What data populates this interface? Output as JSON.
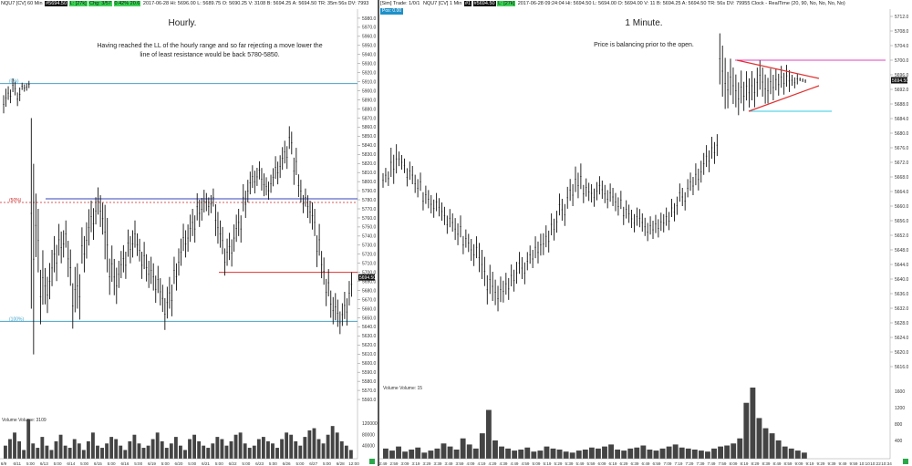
{
  "left": {
    "header": {
      "symbol": "NQU7 [CV]  60 Min",
      "cell1": "#5694.50",
      "cell2": "L: [27k]",
      "cell3": "Chg: 3/57",
      "cell4": "0.42% 20.6",
      "rest": "2017-06-28  Hi: 5696.00  L: 5689.75  O: 5690.25  V: 3108  B: 5694.25  A: 5694.50  TR: 35m 56s  DV: 7993"
    },
    "title": "Hourly.",
    "comment": "Having reached the LL of the hourly range and so far rejecting a move lower the line of least resistance would be back 5780-5850.",
    "volume_label": "Volume  Volume: 3109",
    "colors": {
      "blue_line": "#3344bb",
      "teal_line": "#4aa3c8",
      "red_line": "#e03030",
      "dotted_red": "#cc2222",
      "volume": "#444444"
    }
  },
  "right": {
    "header": {
      "symbol": "[Sim]  Trade: 1/0/1",
      "cell1": "NQU7 [CV]  1 Min",
      "cell2": "#1",
      "cell3": "#5694.50",
      "cell4": "L: [27k]",
      "rest": "2017-06-28 09:24:04  Hi: 5694.50  L: 5694.00  O: 5694.00  V: 11  B: 5694.25  A: 5694.50  TR: 56s  DV: 79955  Clock - RealTime  (20, 90, No, No, No, No)"
    },
    "sub_header": "Pos: 0.00",
    "title": "1 Minute.",
    "comment": "Price is balancing prior to the open.",
    "volume_label": "Volume  Volume: 15",
    "colors": {
      "magenta_line": "#e040c0",
      "cyan_line": "#30c8e0",
      "red_line": "#e03030",
      "volume": "#444444"
    }
  },
  "chart_data": [
    {
      "type": "ohlc",
      "timeframe": "60 Min",
      "ylim": [
        5550,
        5990
      ],
      "price_ticks": [
        5980,
        5970,
        5960,
        5950,
        5940,
        5930,
        5920,
        5910,
        5900,
        5890,
        5880,
        5870,
        5860,
        5850,
        5840,
        5830,
        5820,
        5810,
        5800,
        5790,
        5780,
        5770,
        5760,
        5750,
        5740,
        5730,
        5720,
        5710,
        5700,
        5690,
        5680,
        5670,
        5660,
        5650,
        5640,
        5630,
        5620,
        5610,
        5600,
        5590,
        5580,
        5570,
        5560
      ],
      "last_price": "5694.50",
      "x_tick_labels": [
        "6/9",
        "6/11",
        "5:00",
        "6/13",
        "5:00",
        "6/14",
        "5:00",
        "6/15",
        "5:00",
        "6/16",
        "5:00",
        "6/19",
        "5:00",
        "6/20",
        "5:00",
        "6/21",
        "5:00",
        "6/22",
        "5:00",
        "6/23",
        "5:00",
        "6/26",
        "5:00",
        "6/27",
        "5:00",
        "6/28",
        "12:00"
      ],
      "volume_ticks": [
        "120000",
        "80000",
        "40000"
      ],
      "price_path": [
        [
          5880,
          5900
        ],
        [
          5890,
          5905
        ],
        [
          5895,
          5910
        ],
        [
          5885,
          5900
        ],
        [
          5900,
          5908
        ],
        [
          5902,
          5910
        ],
        [
          5660,
          5870
        ],
        [
          5700,
          5770
        ],
        [
          5650,
          5710
        ],
        [
          5660,
          5700
        ],
        [
          5680,
          5720
        ],
        [
          5700,
          5740
        ],
        [
          5710,
          5745
        ],
        [
          5720,
          5750
        ],
        [
          5690,
          5730
        ],
        [
          5650,
          5700
        ],
        [
          5660,
          5710
        ],
        [
          5700,
          5740
        ],
        [
          5720,
          5760
        ],
        [
          5740,
          5775
        ],
        [
          5760,
          5790
        ],
        [
          5750,
          5785
        ],
        [
          5700,
          5760
        ],
        [
          5680,
          5720
        ],
        [
          5670,
          5710
        ],
        [
          5690,
          5720
        ],
        [
          5700,
          5730
        ],
        [
          5710,
          5740
        ],
        [
          5720,
          5750
        ],
        [
          5715,
          5740
        ],
        [
          5700,
          5730
        ],
        [
          5690,
          5720
        ],
        [
          5680,
          5710
        ],
        [
          5670,
          5700
        ],
        [
          5660,
          5690
        ],
        [
          5645,
          5680
        ],
        [
          5660,
          5695
        ],
        [
          5680,
          5710
        ],
        [
          5700,
          5730
        ],
        [
          5720,
          5750
        ],
        [
          5730,
          5760
        ],
        [
          5740,
          5770
        ],
        [
          5750,
          5780
        ],
        [
          5760,
          5785
        ],
        [
          5765,
          5785
        ],
        [
          5770,
          5790
        ],
        [
          5740,
          5775
        ],
        [
          5720,
          5750
        ],
        [
          5700,
          5730
        ],
        [
          5710,
          5740
        ],
        [
          5730,
          5760
        ],
        [
          5740,
          5770
        ],
        [
          5760,
          5790
        ],
        [
          5780,
          5805
        ],
        [
          5790,
          5815
        ],
        [
          5800,
          5820
        ],
        [
          5790,
          5815
        ],
        [
          5780,
          5800
        ],
        [
          5790,
          5810
        ],
        [
          5800,
          5825
        ],
        [
          5810,
          5835
        ],
        [
          5820,
          5845
        ],
        [
          5830,
          5855
        ],
        [
          5800,
          5830
        ],
        [
          5780,
          5805
        ],
        [
          5770,
          5790
        ],
        [
          5760,
          5785
        ],
        [
          5740,
          5770
        ],
        [
          5710,
          5745
        ],
        [
          5690,
          5720
        ],
        [
          5670,
          5700
        ],
        [
          5650,
          5680
        ],
        [
          5640,
          5670
        ],
        [
          5635,
          5660
        ],
        [
          5645,
          5675
        ],
        [
          5670,
          5697
        ]
      ],
      "volume_bars": [
        30,
        45,
        60,
        40,
        20,
        90,
        35,
        25,
        50,
        30,
        20,
        40,
        55,
        30,
        25,
        45,
        35,
        20,
        40,
        60,
        30,
        25,
        35,
        50,
        45,
        30,
        20,
        40,
        55,
        35,
        25,
        30,
        45,
        60,
        40,
        25,
        35,
        50,
        30,
        20,
        45,
        55,
        40,
        30,
        25,
        35,
        50,
        45,
        30,
        40,
        55,
        60,
        35,
        25,
        30,
        45,
        50,
        40,
        35,
        25,
        45,
        60,
        55,
        40,
        30,
        50,
        65,
        70,
        45,
        35,
        55,
        75,
        60,
        40,
        30,
        20
      ],
      "levels": [
        {
          "label": "(0%)",
          "value": 5908,
          "color": "teal"
        },
        {
          "label": "(50%)",
          "value": 5777,
          "color": "dotted_red"
        },
        {
          "label": "",
          "value": 5781,
          "color": "blue"
        },
        {
          "label": "",
          "value": 5700,
          "color": "red"
        },
        {
          "label": "(100%)",
          "value": 5646,
          "color": "teal"
        }
      ]
    },
    {
      "type": "ohlc",
      "timeframe": "1 Min",
      "ylim": [
        5612,
        5714
      ],
      "price_ticks": [
        5712,
        5708,
        5704,
        5700,
        5696,
        5692,
        5688,
        5684,
        5680,
        5676,
        5672,
        5668,
        5664,
        5660,
        5656,
        5652,
        5648,
        5644,
        5640,
        5636,
        5632,
        5628,
        5624,
        5620,
        5616
      ],
      "last_price": "5694.50",
      "x_tick_labels": [
        "2:49",
        "2:59",
        "3:09",
        "3:19",
        "3:29",
        "3:39",
        "3:49",
        "3:59",
        "4:09",
        "4:19",
        "4:29",
        "4:39",
        "4:49",
        "4:59",
        "5:09",
        "5:19",
        "5:29",
        "5:39",
        "5:49",
        "5:59",
        "6:09",
        "6:19",
        "6:29",
        "6:39",
        "6:49",
        "6:59",
        "7:09",
        "7:19",
        "7:29",
        "7:39",
        "7:49",
        "7:59",
        "8:09",
        "8:19",
        "8:29",
        "8:39",
        "8:49",
        "8:59",
        "9:09",
        "9:19",
        "9:29",
        "9:39",
        "9:49",
        "9:59",
        "10:10",
        "10:22",
        "10:34"
      ],
      "volume_ticks": [
        "1600",
        "1200",
        "800",
        "400"
      ],
      "price_path": [
        [
          5666,
          5670
        ],
        [
          5668,
          5676
        ],
        [
          5670,
          5674
        ],
        [
          5666,
          5671
        ],
        [
          5663,
          5668
        ],
        [
          5660,
          5665
        ],
        [
          5658,
          5663
        ],
        [
          5656,
          5661
        ],
        [
          5653,
          5658
        ],
        [
          5650,
          5656
        ],
        [
          5648,
          5653
        ],
        [
          5645,
          5651
        ],
        [
          5640,
          5648
        ],
        [
          5634,
          5642
        ],
        [
          5632,
          5639
        ],
        [
          5635,
          5641
        ],
        [
          5638,
          5644
        ],
        [
          5640,
          5646
        ],
        [
          5643,
          5648
        ],
        [
          5645,
          5651
        ],
        [
          5648,
          5654
        ],
        [
          5652,
          5658
        ],
        [
          5656,
          5662
        ],
        [
          5660,
          5666
        ],
        [
          5663,
          5670
        ],
        [
          5662,
          5667
        ],
        [
          5661,
          5666
        ],
        [
          5662,
          5667
        ],
        [
          5660,
          5665
        ],
        [
          5658,
          5663
        ],
        [
          5656,
          5661
        ],
        [
          5654,
          5659
        ],
        [
          5653,
          5658
        ],
        [
          5651,
          5656
        ],
        [
          5652,
          5657
        ],
        [
          5654,
          5659
        ],
        [
          5657,
          5662
        ],
        [
          5660,
          5665
        ],
        [
          5663,
          5668
        ],
        [
          5665,
          5671
        ],
        [
          5670,
          5676
        ],
        [
          5673,
          5679
        ],
        [
          5690,
          5704
        ],
        [
          5688,
          5698
        ],
        [
          5686,
          5695
        ],
        [
          5688,
          5696
        ],
        [
          5689,
          5697
        ],
        [
          5690,
          5698
        ],
        [
          5689,
          5696
        ],
        [
          5691,
          5697
        ],
        [
          5692,
          5698
        ],
        [
          5693,
          5696
        ],
        [
          5694,
          5695
        ]
      ],
      "volume_bars": [
        10,
        8,
        12,
        7,
        9,
        11,
        6,
        8,
        10,
        15,
        12,
        9,
        20,
        14,
        10,
        25,
        48,
        18,
        12,
        10,
        8,
        9,
        11,
        7,
        8,
        12,
        10,
        9,
        7,
        6,
        8,
        9,
        11,
        10,
        12,
        14,
        9,
        8,
        10,
        11,
        13,
        9,
        8,
        10,
        12,
        14,
        11,
        10,
        9,
        8,
        7,
        10,
        12,
        13,
        15,
        20,
        55,
        70,
        40,
        30,
        25,
        18,
        12,
        10,
        8,
        6
      ],
      "levels": [
        {
          "label": "",
          "value": 5700,
          "color": "magenta"
        },
        {
          "label": "",
          "value": 5686,
          "color": "cyan"
        }
      ]
    }
  ]
}
